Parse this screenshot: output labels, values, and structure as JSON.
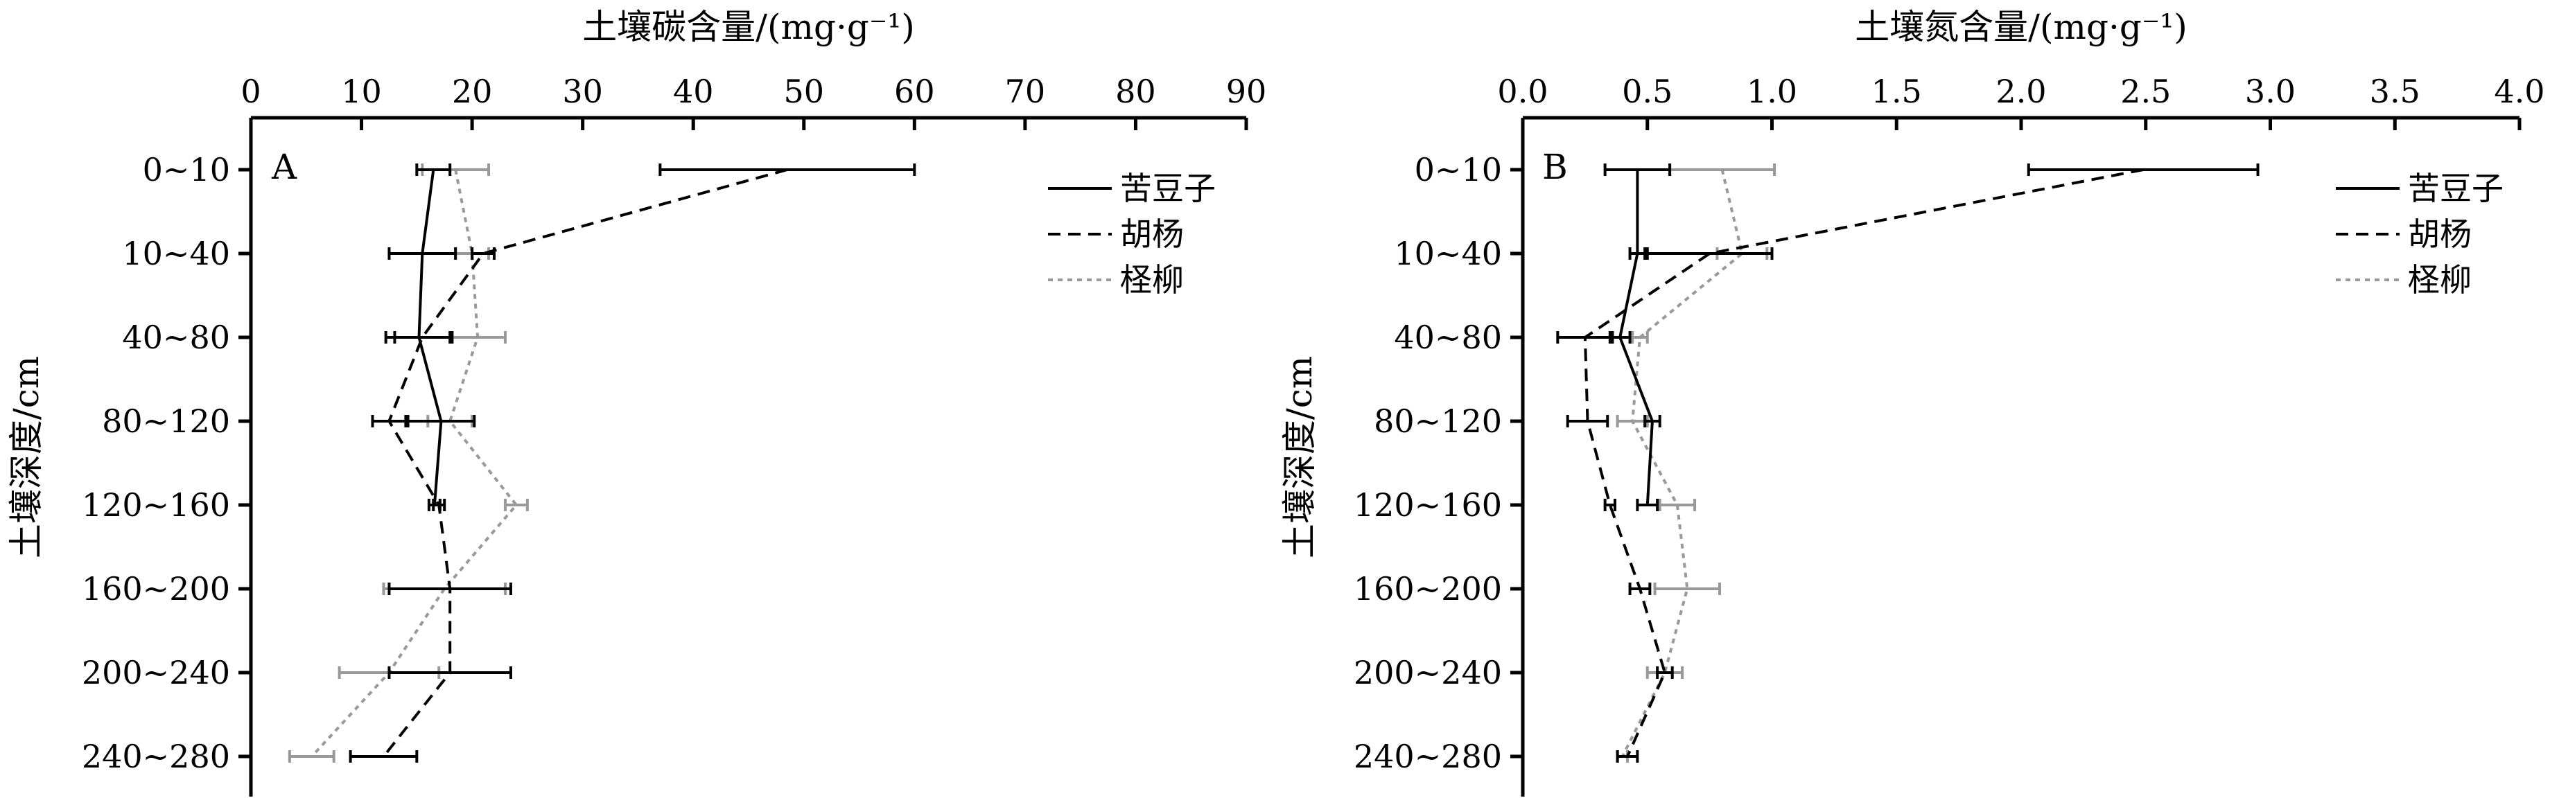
{
  "shared": {
    "ylabel": "土壤深度/cm",
    "depths": [
      "0~10",
      "10~40",
      "40~80",
      "80~120",
      "120~160",
      "160~200",
      "200~240",
      "240~280"
    ],
    "legend": [
      {
        "name": "苦豆子",
        "color": "#000000",
        "dash": "solid"
      },
      {
        "name": "胡杨",
        "color": "#000000",
        "dash": "dashed"
      },
      {
        "name": "柽柳",
        "color": "#999999",
        "dash": "dotted"
      }
    ],
    "legend_placement": "top-right"
  },
  "chart_data": [
    {
      "type": "line",
      "panel": "A",
      "xlabel": "土壤碳含量/(mg·g⁻¹)",
      "xlim": [
        0,
        90
      ],
      "xticks": [
        "0",
        "10",
        "20",
        "30",
        "40",
        "50",
        "60",
        "70",
        "80",
        "90"
      ],
      "categories": [
        "0~10",
        "10~40",
        "40~80",
        "80~120",
        "120~160",
        "160~200",
        "200~240",
        "240~280"
      ],
      "series": [
        {
          "name": "苦豆子",
          "values": [
            16.5,
            15.5,
            15.2,
            17.2,
            16.6,
            null,
            null,
            null
          ],
          "err": [
            1.5,
            3.0,
            3.0,
            3.0,
            0.5,
            null,
            null,
            null
          ]
        },
        {
          "name": "胡杨",
          "values": [
            48.5,
            21.0,
            15.5,
            12.5,
            17.0,
            18.0,
            18.0,
            12.0
          ],
          "err": [
            11.5,
            1.0,
            2.5,
            1.5,
            0.5,
            5.5,
            5.5,
            3.0
          ]
        },
        {
          "name": "柽柳",
          "values": [
            18.5,
            20.0,
            20.5,
            18.0,
            24.0,
            17.5,
            12.5,
            5.5
          ],
          "err": [
            3.0,
            1.5,
            2.5,
            2.0,
            1.0,
            5.5,
            4.5,
            2.0
          ]
        }
      ]
    },
    {
      "type": "line",
      "panel": "B",
      "xlabel": "土壤氮含量/(mg·g⁻¹)",
      "xlim": [
        0,
        4.0
      ],
      "xticks": [
        "0.0",
        "0.5",
        "1.0",
        "1.5",
        "2.0",
        "2.5",
        "3.0",
        "3.5",
        "4.0"
      ],
      "categories": [
        "0~10",
        "10~40",
        "40~80",
        "80~120",
        "120~160",
        "160~200",
        "200~240",
        "240~280"
      ],
      "series": [
        {
          "name": "苦豆子",
          "values": [
            0.46,
            0.46,
            0.39,
            0.52,
            0.5,
            null,
            null,
            null
          ],
          "err": [
            0.13,
            0.03,
            0.04,
            0.03,
            0.04,
            null,
            null,
            null
          ]
        },
        {
          "name": "胡杨",
          "values": [
            2.49,
            0.75,
            0.25,
            0.26,
            0.35,
            0.47,
            0.57,
            0.42
          ],
          "err": [
            0.46,
            0.25,
            0.11,
            0.08,
            0.02,
            0.04,
            0.03,
            0.04
          ]
        },
        {
          "name": "柽柳",
          "values": [
            0.8,
            0.88,
            0.47,
            0.44,
            0.62,
            0.66,
            0.57,
            0.4
          ],
          "err": [
            0.21,
            0.1,
            0.03,
            0.06,
            0.07,
            0.13,
            0.07,
            0.02
          ]
        }
      ]
    }
  ]
}
